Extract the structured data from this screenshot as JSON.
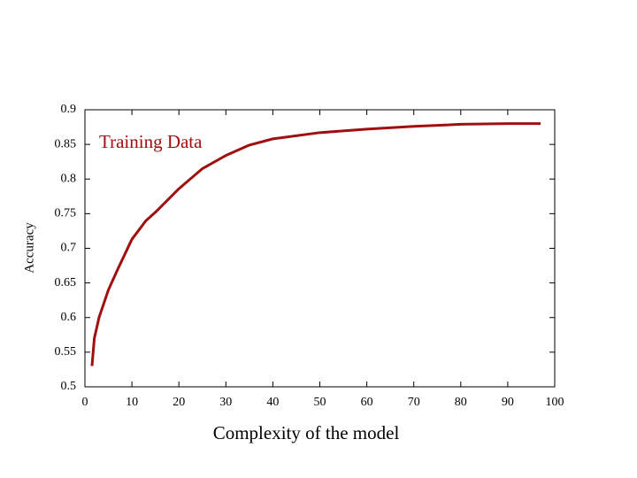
{
  "chart_data": {
    "type": "line",
    "x_label": "Complexity of the model",
    "y_label": "Accuracy",
    "annotation": "Training Data",
    "x": [
      1.5,
      2,
      3,
      5,
      7,
      10,
      13,
      15,
      20,
      25,
      30,
      35,
      40,
      50,
      60,
      70,
      80,
      90,
      97
    ],
    "series": [
      {
        "name": "Training Data",
        "color": "#a00f0f",
        "values": [
          0.53,
          0.57,
          0.6,
          0.64,
          0.67,
          0.713,
          0.74,
          0.752,
          0.786,
          0.815,
          0.834,
          0.849,
          0.858,
          0.867,
          0.872,
          0.876,
          0.879,
          0.88,
          0.88
        ]
      }
    ],
    "xlim": [
      0,
      100
    ],
    "xticks": [
      0,
      10,
      20,
      30,
      40,
      50,
      60,
      70,
      80,
      90,
      100
    ],
    "ylim": [
      0.5,
      0.9
    ],
    "yticks": [
      0.5,
      0.55,
      0.6,
      0.65,
      0.7,
      0.75,
      0.8,
      0.85,
      0.9
    ],
    "grid": false
  }
}
